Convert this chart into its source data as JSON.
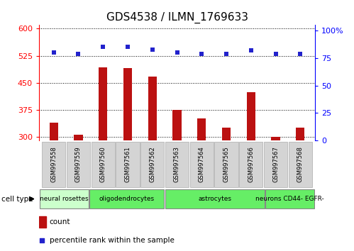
{
  "title": "GDS4538 / ILMN_1769633",
  "samples": [
    "GSM997558",
    "GSM997559",
    "GSM997560",
    "GSM997561",
    "GSM997562",
    "GSM997563",
    "GSM997564",
    "GSM997565",
    "GSM997566",
    "GSM997567",
    "GSM997568"
  ],
  "counts": [
    340,
    307,
    493,
    490,
    468,
    375,
    352,
    325,
    425,
    301,
    325
  ],
  "percentile": [
    80,
    79,
    85,
    85,
    83,
    80,
    79,
    79,
    82,
    79,
    79
  ],
  "cell_types": [
    {
      "label": "neural rosettes",
      "start": 0,
      "end": 2,
      "color": "#ccffcc"
    },
    {
      "label": "oligodendrocytes",
      "start": 2,
      "end": 5,
      "color": "#66ee66"
    },
    {
      "label": "astrocytes",
      "start": 5,
      "end": 9,
      "color": "#66ee66"
    },
    {
      "label": "neurons CD44- EGFR-",
      "start": 9,
      "end": 11,
      "color": "#66ee66"
    }
  ],
  "ylim_left": [
    290,
    610
  ],
  "ylim_right": [
    0,
    105
  ],
  "yticks_left": [
    300,
    375,
    450,
    525,
    600
  ],
  "yticks_right": [
    0,
    25,
    50,
    75,
    100
  ],
  "bar_color": "#bb1111",
  "dot_color": "#2222cc",
  "plot_bg": "#ffffff",
  "sample_box_color": "#d4d4d4",
  "cell_type_label_fontsize": 6.5,
  "sample_label_fontsize": 6.0,
  "title_fontsize": 11
}
